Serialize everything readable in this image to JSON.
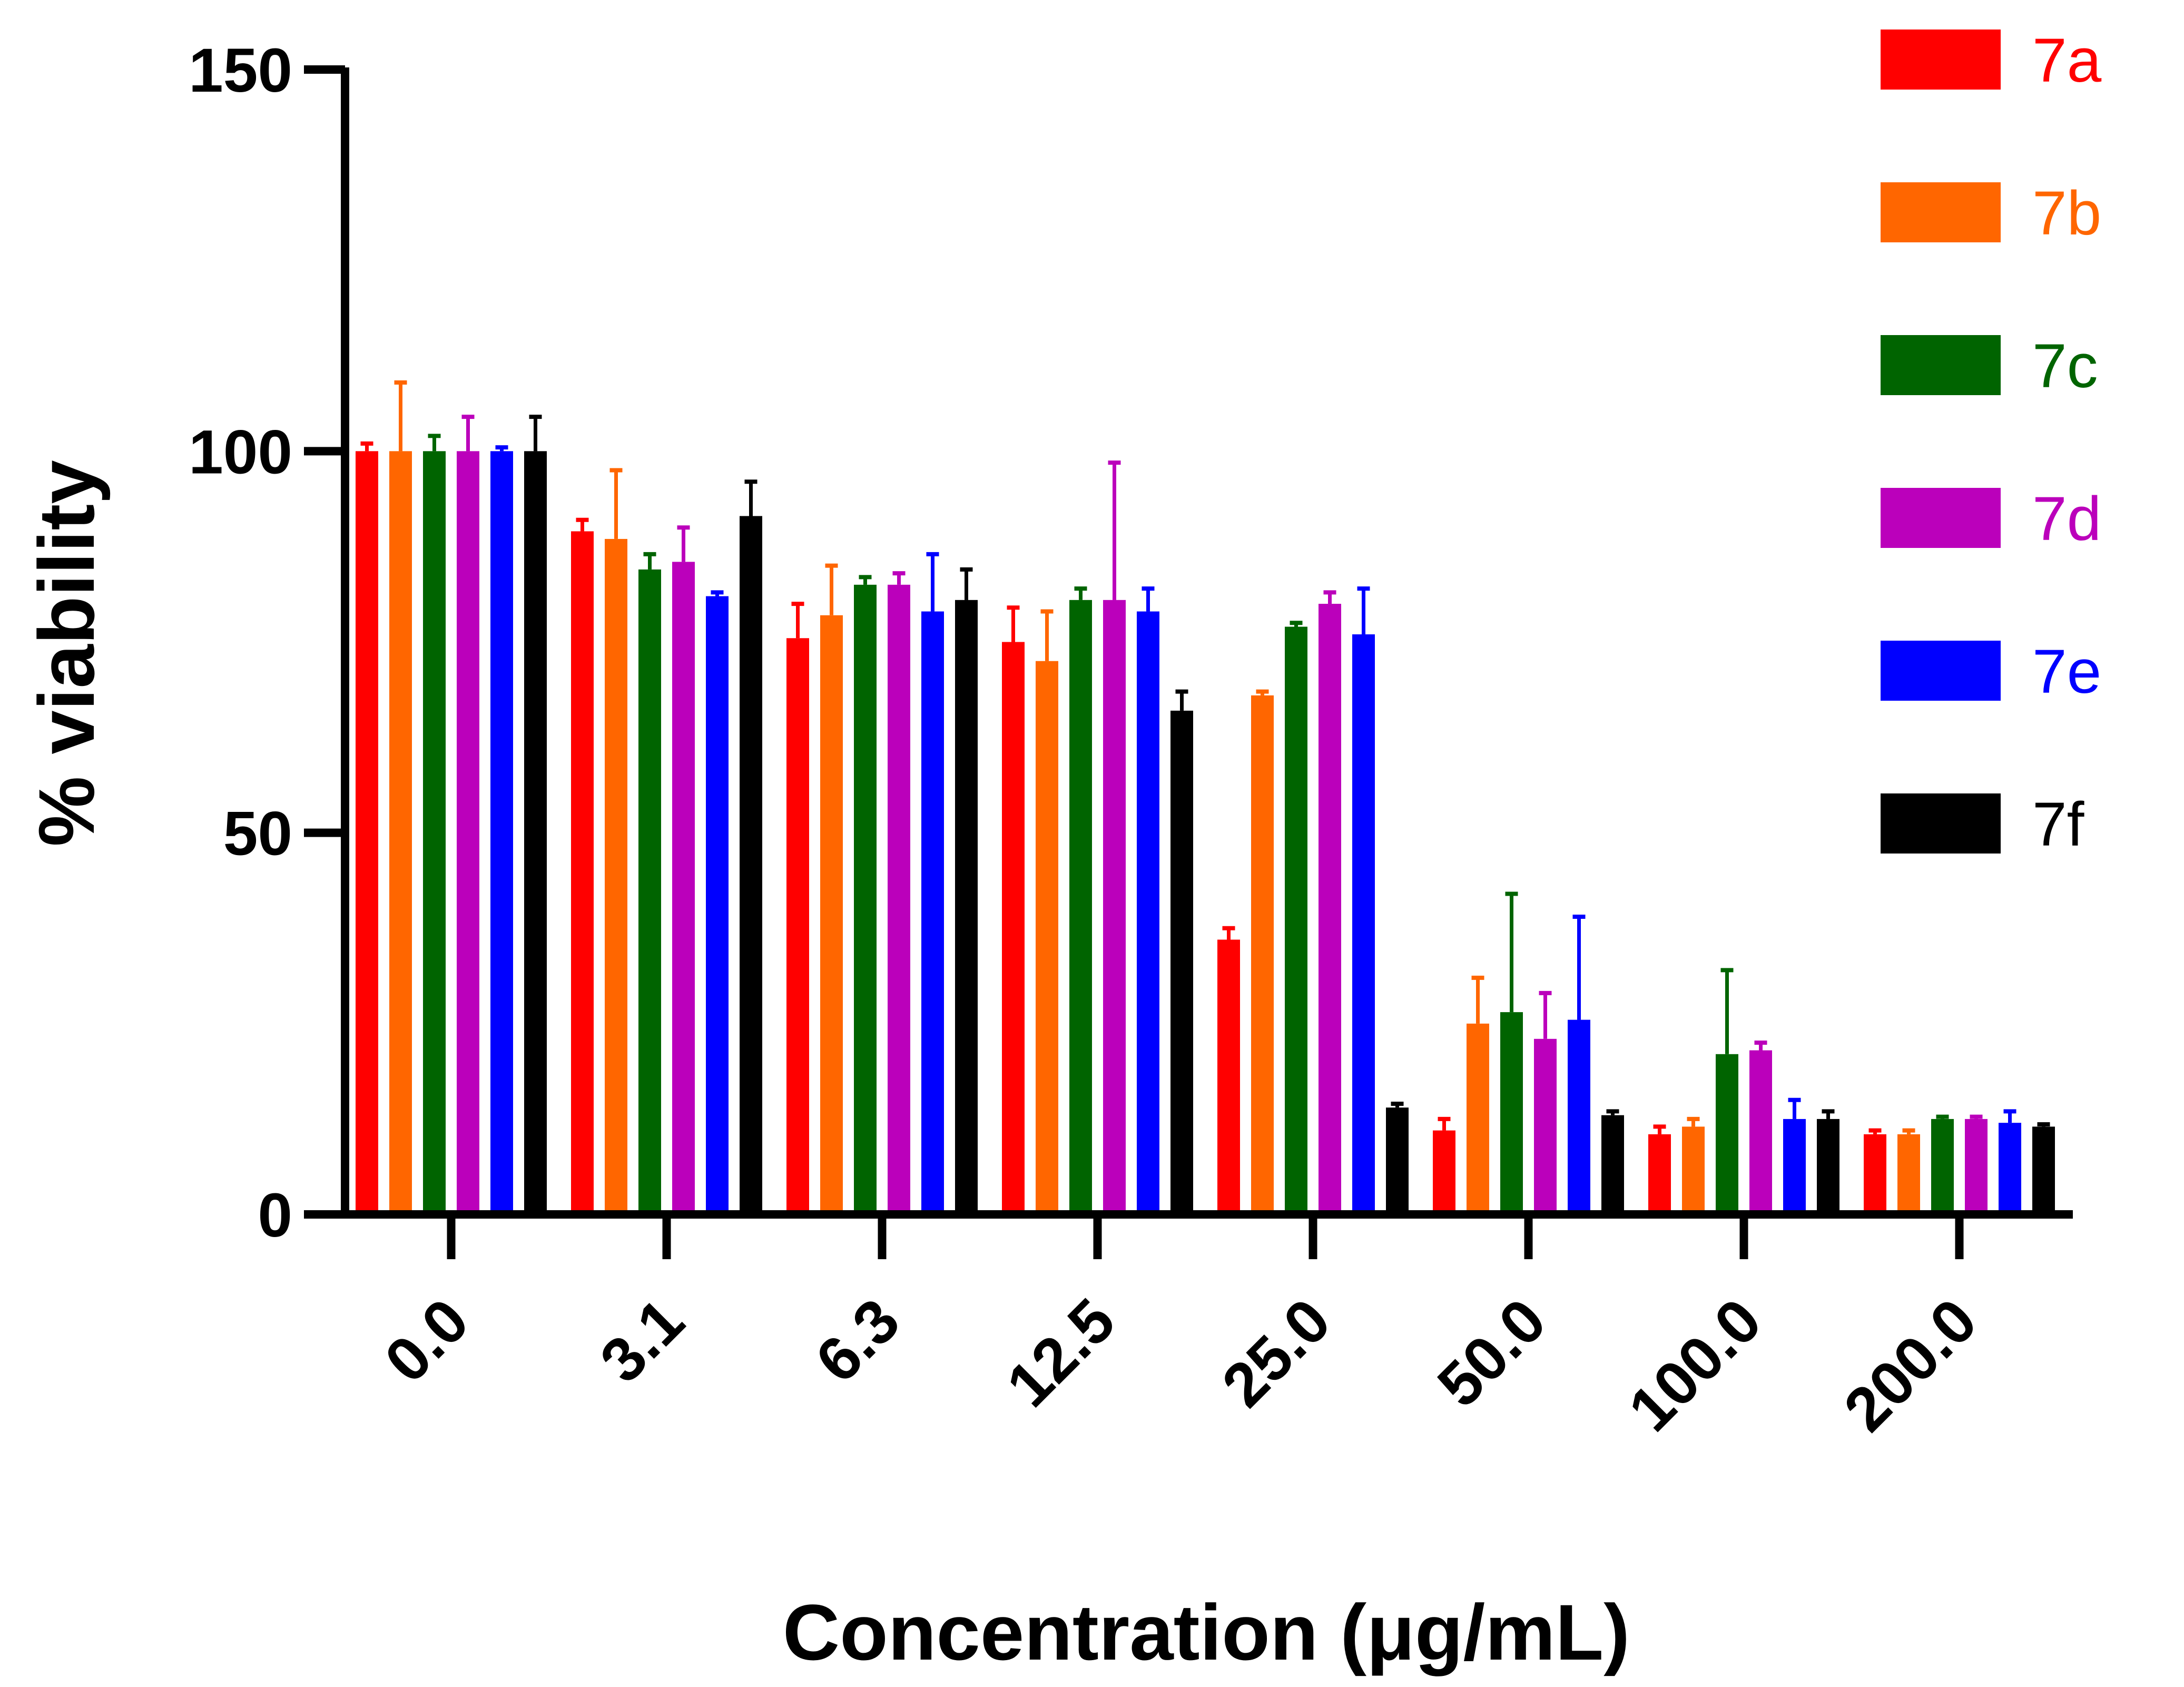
{
  "chart_data": {
    "type": "bar",
    "title": "",
    "xlabel": "Concentration (μg/mL)",
    "ylabel": "% viability",
    "ylim": [
      0,
      150
    ],
    "yticks": [
      "0",
      "50",
      "100",
      "150"
    ],
    "categories": [
      "0.0",
      "3.1",
      "6.3",
      "12.5",
      "25.0",
      "50.0",
      "100.0",
      "200.0"
    ],
    "legend_position": "top-right",
    "error_bars": "upper",
    "series": [
      {
        "name": "7a",
        "color": "#ff0000",
        "values": [
          100,
          89.5,
          75.5,
          75,
          36,
          11,
          10.5,
          10.5
        ],
        "errors": [
          1,
          1.5,
          4.5,
          4.5,
          1.5,
          1.5,
          1,
          0.5
        ]
      },
      {
        "name": "7b",
        "color": "#ff6600",
        "values": [
          100,
          88.5,
          78.5,
          72.5,
          68,
          25,
          11.5,
          10.5
        ],
        "errors": [
          9,
          9,
          6.5,
          6.5,
          0.5,
          6,
          1,
          0.5
        ]
      },
      {
        "name": "7c",
        "color": "#006400",
        "values": [
          100,
          84.5,
          82.5,
          80.5,
          77,
          26.5,
          21,
          12.5
        ],
        "errors": [
          2,
          2,
          1,
          1.5,
          0.5,
          15.5,
          11,
          0.3
        ]
      },
      {
        "name": "7d",
        "color": "#bb00bb",
        "values": [
          100,
          85.5,
          82.5,
          80.5,
          80,
          23,
          21.5,
          12.5
        ],
        "errors": [
          4.5,
          4.5,
          1.5,
          18,
          1.5,
          6,
          1,
          0.3
        ]
      },
      {
        "name": "7e",
        "color": "#0000ff",
        "values": [
          100,
          81,
          79,
          79,
          76,
          25.5,
          12.5,
          12
        ],
        "errors": [
          0.5,
          0.5,
          7.5,
          3,
          6,
          13.5,
          2.5,
          1.5
        ]
      },
      {
        "name": "7f",
        "color": "#000000",
        "values": [
          100,
          91.5,
          80.5,
          66,
          14,
          13,
          12.5,
          11.5
        ],
        "errors": [
          4.5,
          4.5,
          4,
          2.5,
          0.5,
          0.5,
          1,
          0.3
        ]
      }
    ]
  }
}
